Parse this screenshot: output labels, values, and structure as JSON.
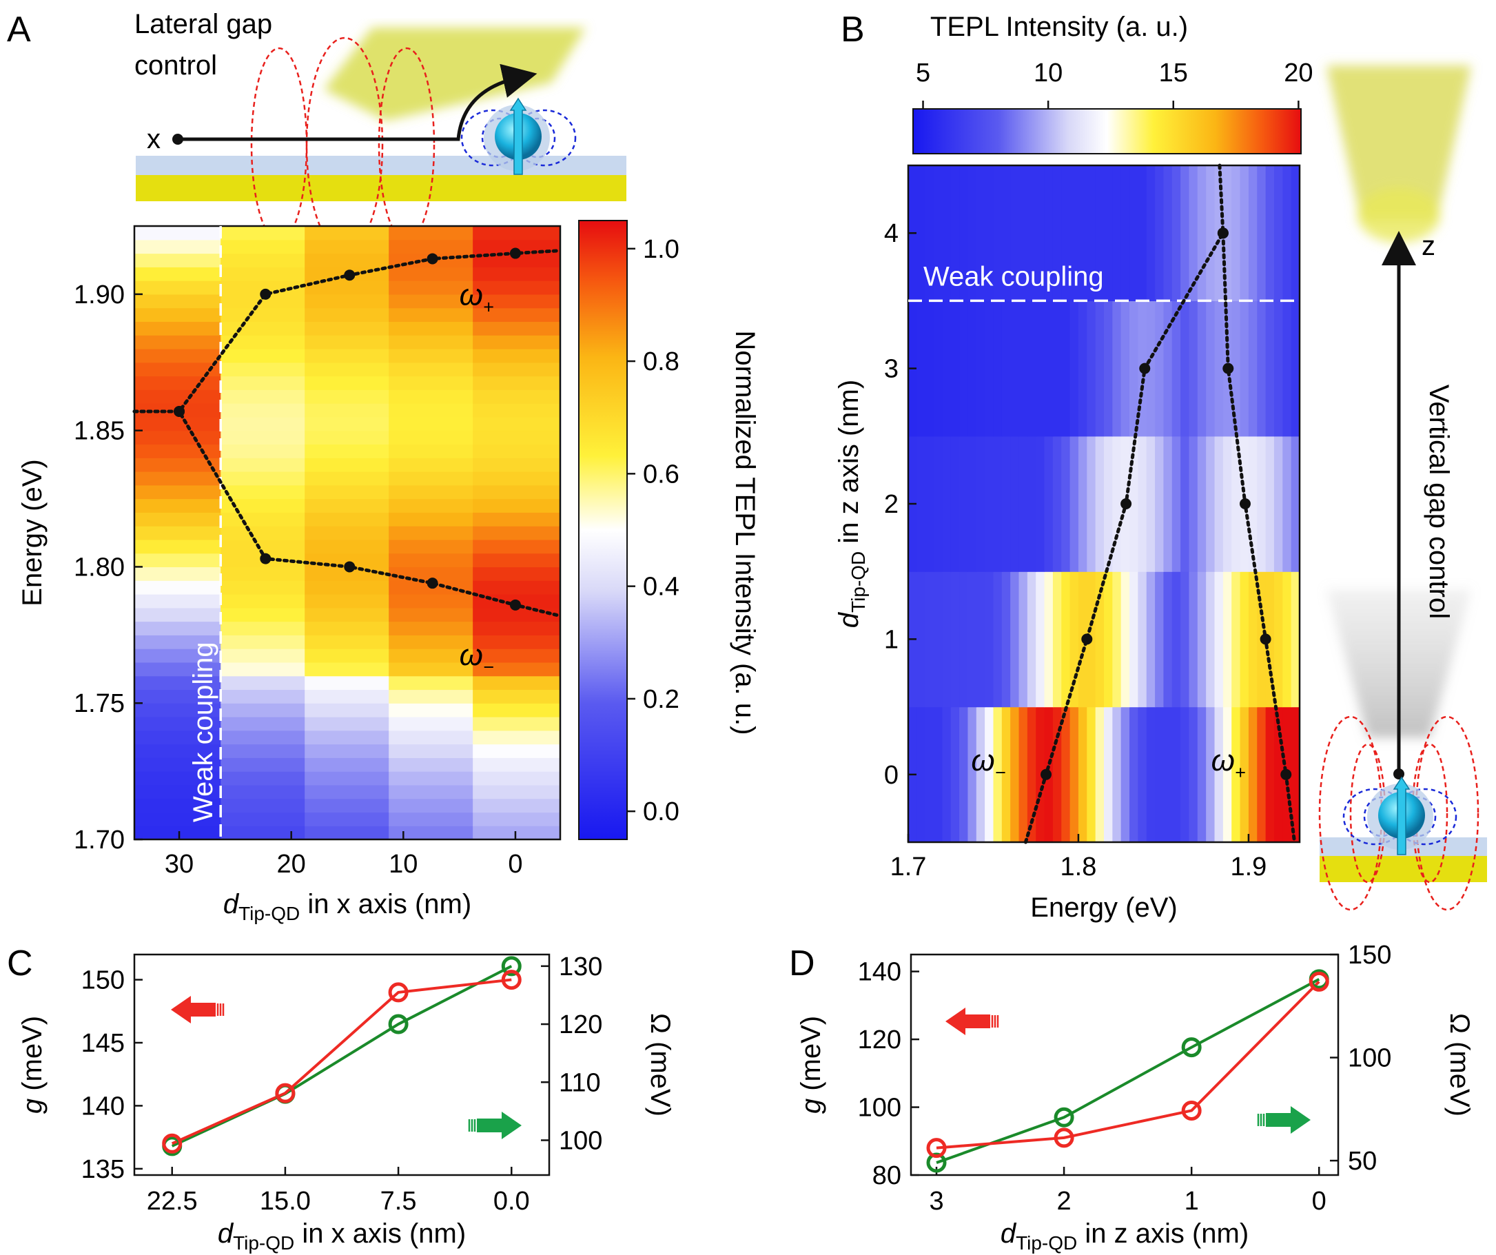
{
  "panels": {
    "a": "A",
    "b": "B",
    "c": "C",
    "d": "D"
  },
  "colors": {
    "red": "#ee2a24",
    "green": "#1a8a2a",
    "black": "#111111"
  },
  "schematic_a": {
    "title_line1": "Lateral gap",
    "title_line2": "control",
    "axis": "x"
  },
  "schematic_b": {
    "title": "Vertical gap control",
    "axis": "z"
  },
  "chart_data": [
    {
      "id": "A",
      "type": "heatmap",
      "xlabel_pre": "d",
      "xlabel_sub": "Tip-QD",
      "xlabel_post": " in x axis (nm)",
      "ylabel": "Energy (eV)",
      "xlim": [
        34,
        -4
      ],
      "ylim": [
        1.7,
        1.925
      ],
      "xticks": [
        "30",
        "20",
        "10",
        "0"
      ],
      "xtick_values": [
        30,
        20,
        10,
        0
      ],
      "yticks": [
        "1.70",
        "1.75",
        "1.80",
        "1.85",
        "1.90"
      ],
      "ytick_values": [
        1.7,
        1.75,
        1.8,
        1.85,
        1.9
      ],
      "columns_x": [
        30,
        22.5,
        15,
        7.5,
        0
      ],
      "weak_coupling_label": "Weak coupling",
      "weak_coupling_x": 26.3,
      "colorbar": {
        "label": "Normalized TEPL Intensity (a. u.)",
        "range": [
          -0.05,
          1.05
        ],
        "ticks": [
          "0.0",
          "0.2",
          "0.4",
          "0.6",
          "0.8",
          "1.0"
        ],
        "tick_values": [
          0,
          0.2,
          0.4,
          0.6,
          0.8,
          1.0
        ]
      },
      "series": [
        {
          "name": "ω+",
          "label_main": "ω",
          "label_sub": "+",
          "x": [
            34,
            30,
            22.3,
            14.8,
            7.4,
            0,
            -4
          ],
          "y": [
            1.857,
            1.857,
            1.9,
            1.907,
            1.913,
            1.915,
            1.916
          ],
          "markers": [
            1,
            2,
            3,
            4,
            5
          ]
        },
        {
          "name": "ω−",
          "label_main": "ω",
          "label_sub": "−",
          "x": [
            34,
            30,
            22.3,
            14.8,
            7.4,
            0,
            -4
          ],
          "y": [
            1.857,
            1.857,
            1.803,
            1.8,
            1.794,
            1.786,
            1.782
          ],
          "markers": [
            1,
            2,
            3,
            4,
            5
          ]
        }
      ]
    },
    {
      "id": "B",
      "type": "heatmap",
      "xlabel": "Energy (eV)",
      "ylabel_pre": "d",
      "ylabel_sub": "Tip-QD",
      "ylabel_post": " in z axis (nm)",
      "xlim": [
        1.7,
        1.93
      ],
      "ylim": [
        -0.5,
        4.5
      ],
      "xticks": [
        "1.7",
        "1.8",
        "1.9"
      ],
      "xtick_values": [
        1.7,
        1.8,
        1.9
      ],
      "yticks": [
        "0",
        "1",
        "2",
        "3",
        "4"
      ],
      "ytick_values": [
        0,
        1,
        2,
        3,
        4
      ],
      "weak_coupling_label": "Weak coupling",
      "weak_coupling_y": 3.5,
      "colorbar": {
        "label": "TEPL Intensity (a. u.)",
        "range": [
          4.6,
          20.1
        ],
        "ticks": [
          "5",
          "10",
          "15",
          "20"
        ],
        "tick_values": [
          5,
          10,
          15,
          20
        ]
      },
      "series": [
        {
          "name": "ω−",
          "label_main": "ω",
          "label_sub": "−",
          "x": [
            1.769,
            1.781,
            1.805,
            1.828,
            1.839,
            1.885
          ],
          "y": [
            -0.5,
            0,
            1,
            2,
            3,
            4
          ]
        },
        {
          "name": "ω+",
          "label_main": "ω",
          "label_sub": "+",
          "x": [
            1.883,
            1.885,
            1.888,
            1.898,
            1.91,
            1.922,
            1.927
          ],
          "y": [
            4.5,
            4,
            3,
            2,
            1,
            0,
            -0.5
          ]
        }
      ]
    },
    {
      "id": "C",
      "type": "line",
      "xlabel_pre": "d",
      "xlabel_sub": "Tip-QD",
      "xlabel_post": " in x axis (nm)",
      "ylabel_left_pre": "g",
      "ylabel_left_post": " (meV)",
      "ylabel_right": "Ω (meV)",
      "xlim": [
        25,
        -2.5
      ],
      "ylim_left": [
        134.5,
        152
      ],
      "ylim_right": [
        94,
        132
      ],
      "xticks": [
        "22.5",
        "15.0",
        "7.5",
        "0.0"
      ],
      "xtick_values": [
        22.5,
        15,
        7.5,
        0
      ],
      "yticks_left": [
        "135",
        "140",
        "145",
        "150"
      ],
      "ytick_values_left": [
        135,
        140,
        145,
        150
      ],
      "yticks_right": [
        "100",
        "110",
        "120",
        "130"
      ],
      "ytick_values_right": [
        100,
        110,
        120,
        130
      ],
      "series": [
        {
          "name": "g",
          "axis": "left",
          "color": "#ee2a24",
          "x": [
            22.5,
            15,
            7.5,
            0
          ],
          "values": [
            137.0,
            141.0,
            149.0,
            150.0
          ]
        },
        {
          "name": "Ω",
          "axis": "right",
          "color": "#1a8a2a",
          "x": [
            22.5,
            15,
            7.5,
            0
          ],
          "values": [
            99.0,
            108.0,
            120.0,
            130.0
          ]
        }
      ]
    },
    {
      "id": "D",
      "type": "line",
      "xlabel_pre": "d",
      "xlabel_sub": "Tip-QD",
      "xlabel_post": " in z axis (nm)",
      "ylabel_left_pre": "g",
      "ylabel_left_post": " (meV)",
      "ylabel_right": "Ω (meV)",
      "xlim": [
        3.2,
        -0.15
      ],
      "ylim_left": [
        80,
        145
      ],
      "ylim_right": [
        43,
        150
      ],
      "xticks": [
        "3",
        "2",
        "1",
        "0"
      ],
      "xtick_values": [
        3,
        2,
        1,
        0
      ],
      "yticks_left": [
        "80",
        "100",
        "120",
        "140"
      ],
      "ytick_values_left": [
        80,
        100,
        120,
        140
      ],
      "yticks_right": [
        "50",
        "100",
        "150"
      ],
      "ytick_values_right": [
        50,
        100,
        150
      ],
      "series": [
        {
          "name": "g",
          "axis": "left",
          "color": "#ee2a24",
          "x": [
            3,
            2,
            1,
            0
          ],
          "values": [
            88,
            91,
            99,
            137
          ]
        },
        {
          "name": "Ω",
          "axis": "right",
          "color": "#1a8a2a",
          "x": [
            3,
            2,
            1,
            0
          ],
          "values": [
            49,
            71,
            105,
            138
          ]
        }
      ]
    }
  ]
}
